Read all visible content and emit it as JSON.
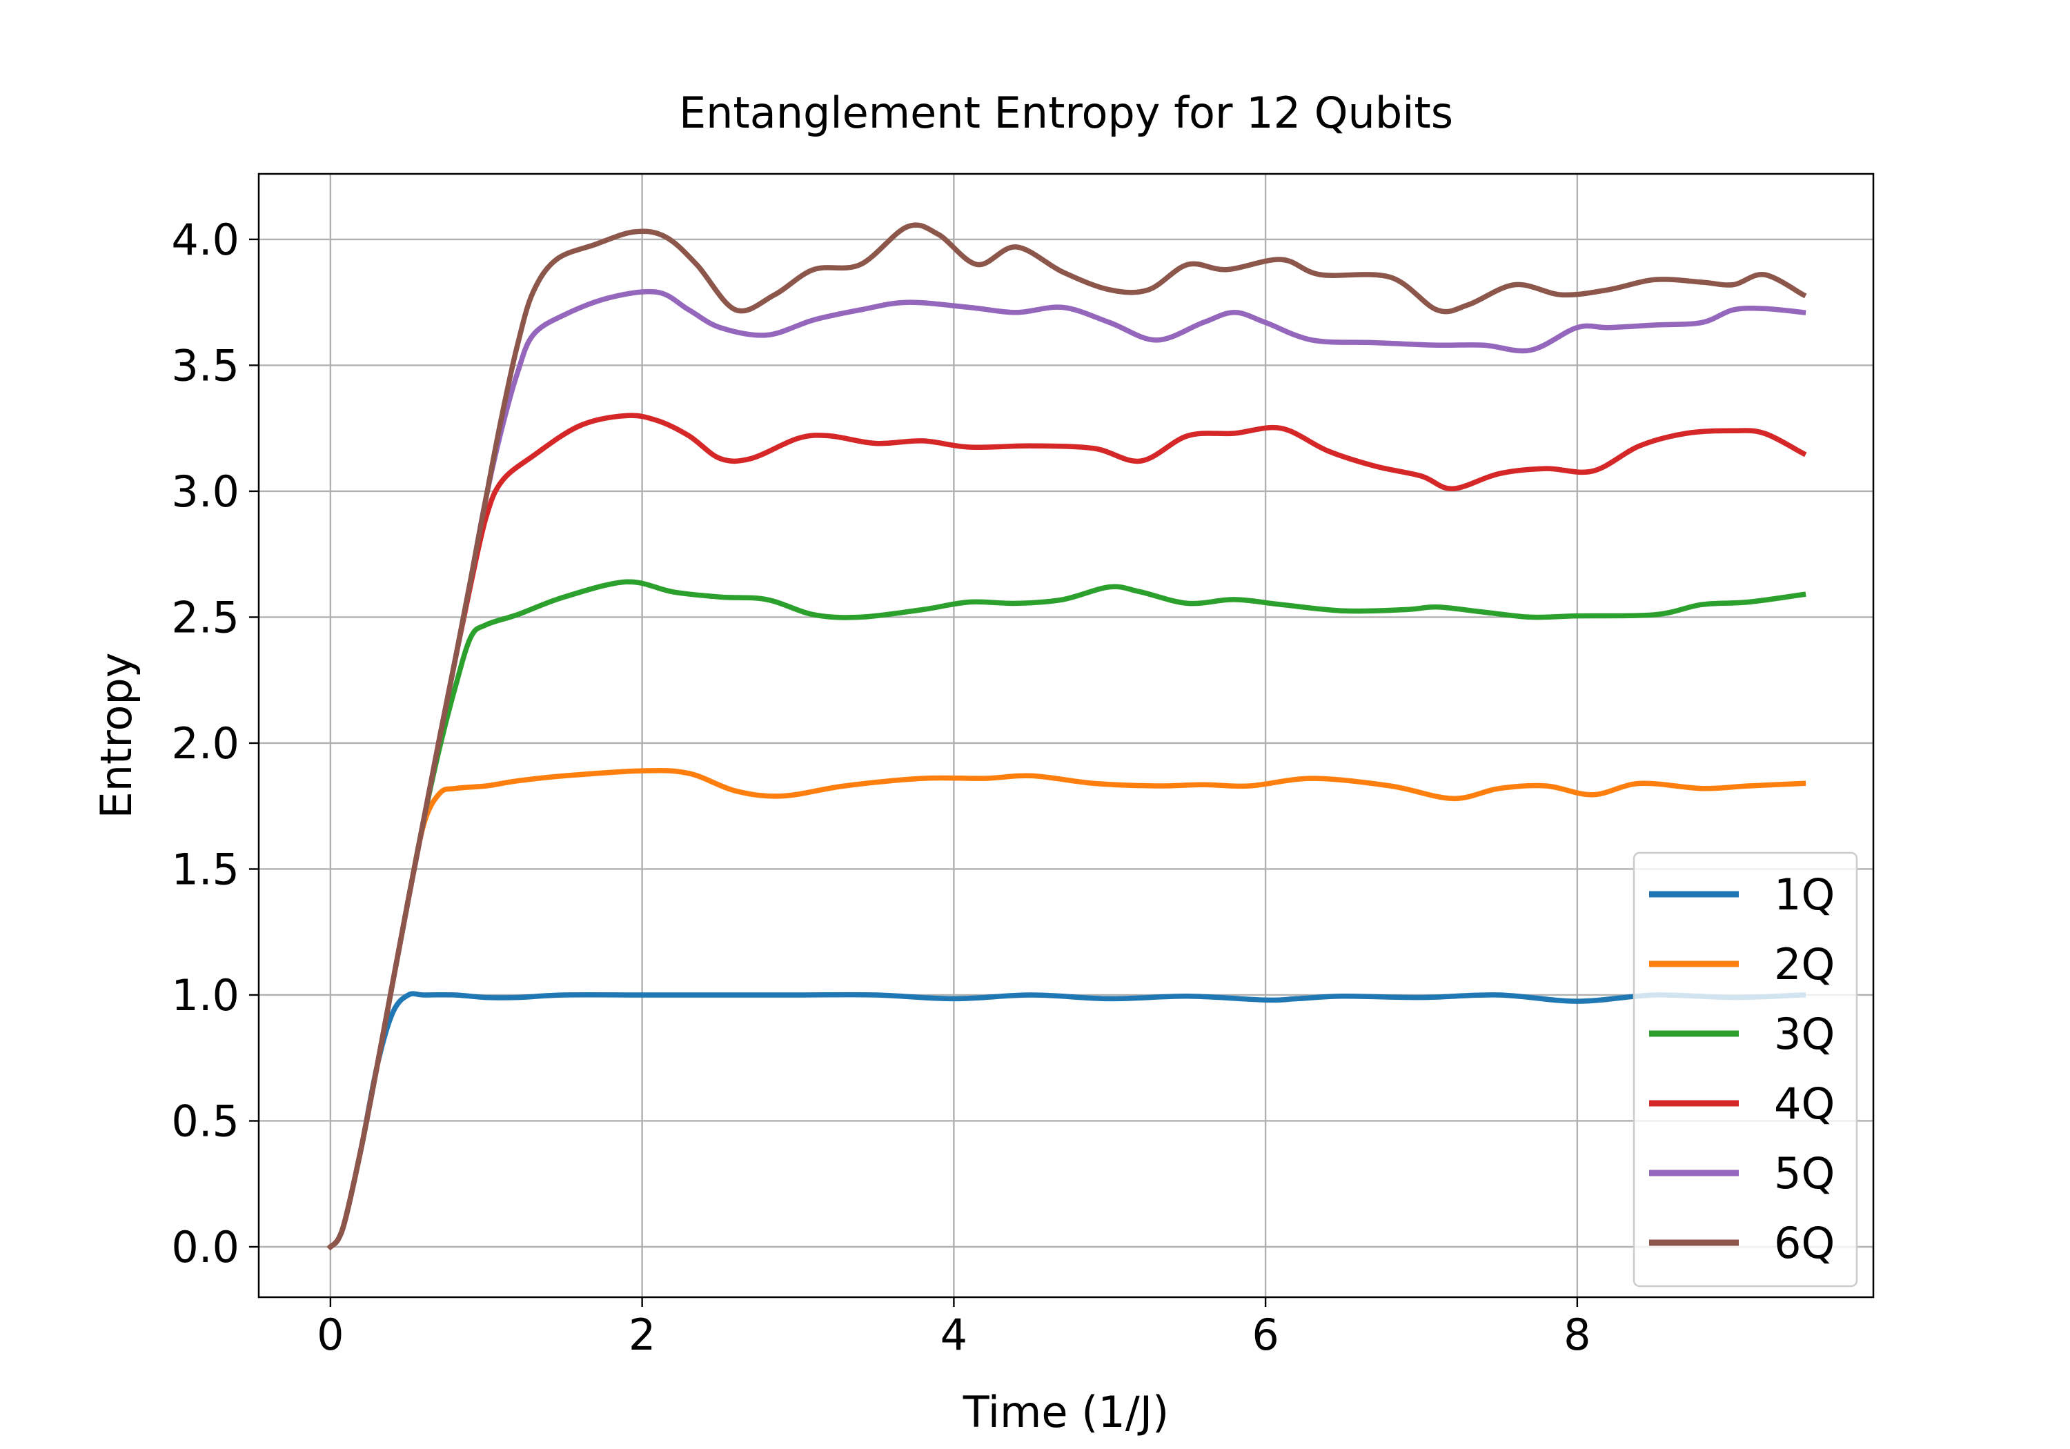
{
  "chart_data": {
    "type": "line",
    "title": "Entanglement Entropy for 12 Qubits",
    "xlabel": "Time (1/J)",
    "ylabel": "Entropy",
    "xlim": [
      -0.46,
      9.9
    ],
    "ylim": [
      -0.2,
      4.26
    ],
    "xticks": [
      0,
      2,
      4,
      6,
      8
    ],
    "xtick_labels": [
      "0",
      "2",
      "4",
      "6",
      "8"
    ],
    "yticks": [
      0.0,
      0.5,
      1.0,
      1.5,
      2.0,
      2.5,
      3.0,
      3.5,
      4.0
    ],
    "ytick_labels": [
      "0.0",
      "0.5",
      "1.0",
      "1.5",
      "2.0",
      "2.5",
      "3.0",
      "3.5",
      "4.0"
    ],
    "grid": true,
    "legend_position": "lower-right",
    "series": [
      {
        "name": "1Q",
        "color": "#1f77b4",
        "x": [
          0,
          0.05,
          0.1,
          0.2,
          0.3,
          0.4,
          0.5,
          0.6,
          0.8,
          1.0,
          1.2,
          1.5,
          2.0,
          2.5,
          3.0,
          3.5,
          4.0,
          4.5,
          5.0,
          5.5,
          6.0,
          6.2,
          6.5,
          7.0,
          7.5,
          8.0,
          8.5,
          9.0,
          9.45
        ],
        "y": [
          0.0,
          0.03,
          0.12,
          0.4,
          0.72,
          0.93,
          1.0,
          1.0,
          1.0,
          0.99,
          0.99,
          1.0,
          1.0,
          1.0,
          1.0,
          1.0,
          0.985,
          1.0,
          0.985,
          0.995,
          0.98,
          0.985,
          0.995,
          0.99,
          1.0,
          0.975,
          1.0,
          0.99,
          1.0
        ]
      },
      {
        "name": "2Q",
        "color": "#ff7f0e",
        "x": [
          0,
          0.05,
          0.1,
          0.2,
          0.3,
          0.4,
          0.5,
          0.6,
          0.7,
          0.8,
          1.0,
          1.2,
          1.5,
          2.0,
          2.3,
          2.6,
          2.9,
          3.3,
          3.8,
          4.2,
          4.5,
          4.9,
          5.3,
          5.6,
          5.9,
          6.3,
          6.8,
          7.2,
          7.5,
          7.8,
          8.1,
          8.4,
          8.8,
          9.1,
          9.45
        ],
        "y": [
          0.0,
          0.03,
          0.12,
          0.4,
          0.72,
          1.05,
          1.38,
          1.68,
          1.8,
          1.82,
          1.83,
          1.85,
          1.87,
          1.89,
          1.88,
          1.81,
          1.79,
          1.83,
          1.86,
          1.86,
          1.87,
          1.84,
          1.83,
          1.835,
          1.83,
          1.86,
          1.83,
          1.78,
          1.82,
          1.83,
          1.795,
          1.84,
          1.82,
          1.83,
          1.84
        ]
      },
      {
        "name": "3Q",
        "color": "#2ca02c",
        "x": [
          0,
          0.05,
          0.1,
          0.2,
          0.3,
          0.4,
          0.5,
          0.6,
          0.7,
          0.8,
          0.9,
          1.0,
          1.2,
          1.5,
          1.9,
          2.2,
          2.5,
          2.8,
          3.1,
          3.4,
          3.8,
          4.1,
          4.4,
          4.7,
          5.0,
          5.2,
          5.5,
          5.8,
          6.1,
          6.5,
          6.9,
          7.1,
          7.4,
          7.7,
          8.0,
          8.5,
          8.8,
          9.1,
          9.45
        ],
        "y": [
          0.0,
          0.03,
          0.12,
          0.4,
          0.72,
          1.05,
          1.38,
          1.7,
          1.98,
          2.22,
          2.42,
          2.47,
          2.51,
          2.58,
          2.64,
          2.6,
          2.58,
          2.57,
          2.51,
          2.5,
          2.53,
          2.56,
          2.555,
          2.57,
          2.62,
          2.6,
          2.555,
          2.57,
          2.55,
          2.525,
          2.53,
          2.54,
          2.52,
          2.5,
          2.505,
          2.51,
          2.55,
          2.56,
          2.59
        ]
      },
      {
        "name": "4Q",
        "color": "#d62728",
        "x": [
          0,
          0.05,
          0.1,
          0.2,
          0.3,
          0.4,
          0.5,
          0.6,
          0.7,
          0.8,
          0.9,
          1.0,
          1.1,
          1.3,
          1.6,
          1.9,
          2.1,
          2.3,
          2.5,
          2.7,
          3.0,
          3.2,
          3.5,
          3.8,
          4.1,
          4.5,
          4.9,
          5.2,
          5.5,
          5.8,
          6.1,
          6.4,
          6.7,
          7.0,
          7.2,
          7.5,
          7.8,
          8.1,
          8.4,
          8.7,
          9.0,
          9.2,
          9.45
        ],
        "y": [
          0.0,
          0.03,
          0.12,
          0.4,
          0.72,
          1.05,
          1.38,
          1.7,
          2.02,
          2.33,
          2.63,
          2.9,
          3.04,
          3.14,
          3.26,
          3.3,
          3.28,
          3.22,
          3.13,
          3.13,
          3.21,
          3.22,
          3.19,
          3.2,
          3.175,
          3.18,
          3.17,
          3.12,
          3.22,
          3.23,
          3.25,
          3.16,
          3.1,
          3.06,
          3.01,
          3.07,
          3.09,
          3.08,
          3.18,
          3.23,
          3.24,
          3.23,
          3.15
        ]
      },
      {
        "name": "5Q",
        "color": "#9467bd",
        "x": [
          0,
          0.05,
          0.1,
          0.2,
          0.3,
          0.4,
          0.5,
          0.6,
          0.7,
          0.8,
          0.9,
          1.0,
          1.1,
          1.2,
          1.3,
          1.5,
          1.8,
          2.1,
          2.3,
          2.5,
          2.8,
          3.1,
          3.4,
          3.7,
          4.1,
          4.4,
          4.7,
          5.0,
          5.3,
          5.6,
          5.8,
          6.0,
          6.3,
          6.7,
          7.1,
          7.4,
          7.7,
          8.0,
          8.2,
          8.5,
          8.8,
          9.0,
          9.2,
          9.45
        ],
        "y": [
          0.0,
          0.03,
          0.12,
          0.4,
          0.72,
          1.05,
          1.38,
          1.7,
          2.02,
          2.33,
          2.65,
          2.98,
          3.25,
          3.47,
          3.62,
          3.7,
          3.77,
          3.79,
          3.72,
          3.65,
          3.62,
          3.68,
          3.72,
          3.75,
          3.73,
          3.71,
          3.73,
          3.67,
          3.6,
          3.67,
          3.71,
          3.67,
          3.6,
          3.59,
          3.58,
          3.58,
          3.56,
          3.65,
          3.65,
          3.66,
          3.67,
          3.72,
          3.725,
          3.71
        ]
      },
      {
        "name": "6Q",
        "color": "#8c564b",
        "x": [
          0,
          0.05,
          0.1,
          0.2,
          0.3,
          0.4,
          0.5,
          0.6,
          0.7,
          0.8,
          0.9,
          1.0,
          1.1,
          1.2,
          1.3,
          1.45,
          1.7,
          1.95,
          2.15,
          2.35,
          2.6,
          2.85,
          3.1,
          3.4,
          3.7,
          3.9,
          4.15,
          4.4,
          4.7,
          5.0,
          5.25,
          5.5,
          5.75,
          6.1,
          6.35,
          6.8,
          7.1,
          7.3,
          7.6,
          7.9,
          8.2,
          8.5,
          8.8,
          9.0,
          9.2,
          9.45
        ],
        "y": [
          0.0,
          0.03,
          0.12,
          0.4,
          0.72,
          1.05,
          1.38,
          1.7,
          2.02,
          2.33,
          2.65,
          2.98,
          3.3,
          3.58,
          3.79,
          3.92,
          3.98,
          4.03,
          4.01,
          3.9,
          3.72,
          3.78,
          3.88,
          3.9,
          4.05,
          4.02,
          3.9,
          3.97,
          3.87,
          3.8,
          3.8,
          3.9,
          3.88,
          3.92,
          3.86,
          3.85,
          3.72,
          3.74,
          3.82,
          3.78,
          3.8,
          3.84,
          3.83,
          3.82,
          3.86,
          3.78
        ]
      }
    ]
  }
}
